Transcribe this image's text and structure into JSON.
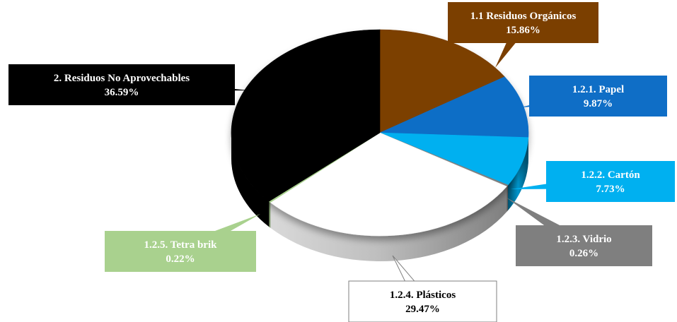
{
  "chart_data": {
    "type": "pie",
    "style": "3d",
    "slices": [
      {
        "label": "1.1 Residuos Orgánicos",
        "value": 15.86,
        "display": "15.86%",
        "color": "#7B3F00",
        "text_color": "#ffffff"
      },
      {
        "label": "1.2.1. Papel",
        "value": 9.87,
        "display": "9.87%",
        "color": "#0F6EC6",
        "text_color": "#ffffff"
      },
      {
        "label": "1.2.2. Cartón",
        "value": 7.73,
        "display": "7.73%",
        "color": "#00B0F0",
        "text_color": "#ffffff"
      },
      {
        "label": "1.2.3. Vidrio",
        "value": 0.26,
        "display": "0.26%",
        "color": "#7F7F7F",
        "text_color": "#ffffff"
      },
      {
        "label": "1.2.4. Plásticos",
        "value": 29.47,
        "display": "29.47%",
        "color": "#ffffff",
        "text_color": "#000000"
      },
      {
        "label": "1.2.5. Tetra brik",
        "value": 0.22,
        "display": "0.22%",
        "color": "#A9D18E",
        "text_color": "#ffffff"
      },
      {
        "label": "2. Residuos No Aprovechables",
        "value": 36.59,
        "display": "36.59%",
        "color": "#000000",
        "text_color": "#ffffff"
      }
    ]
  }
}
